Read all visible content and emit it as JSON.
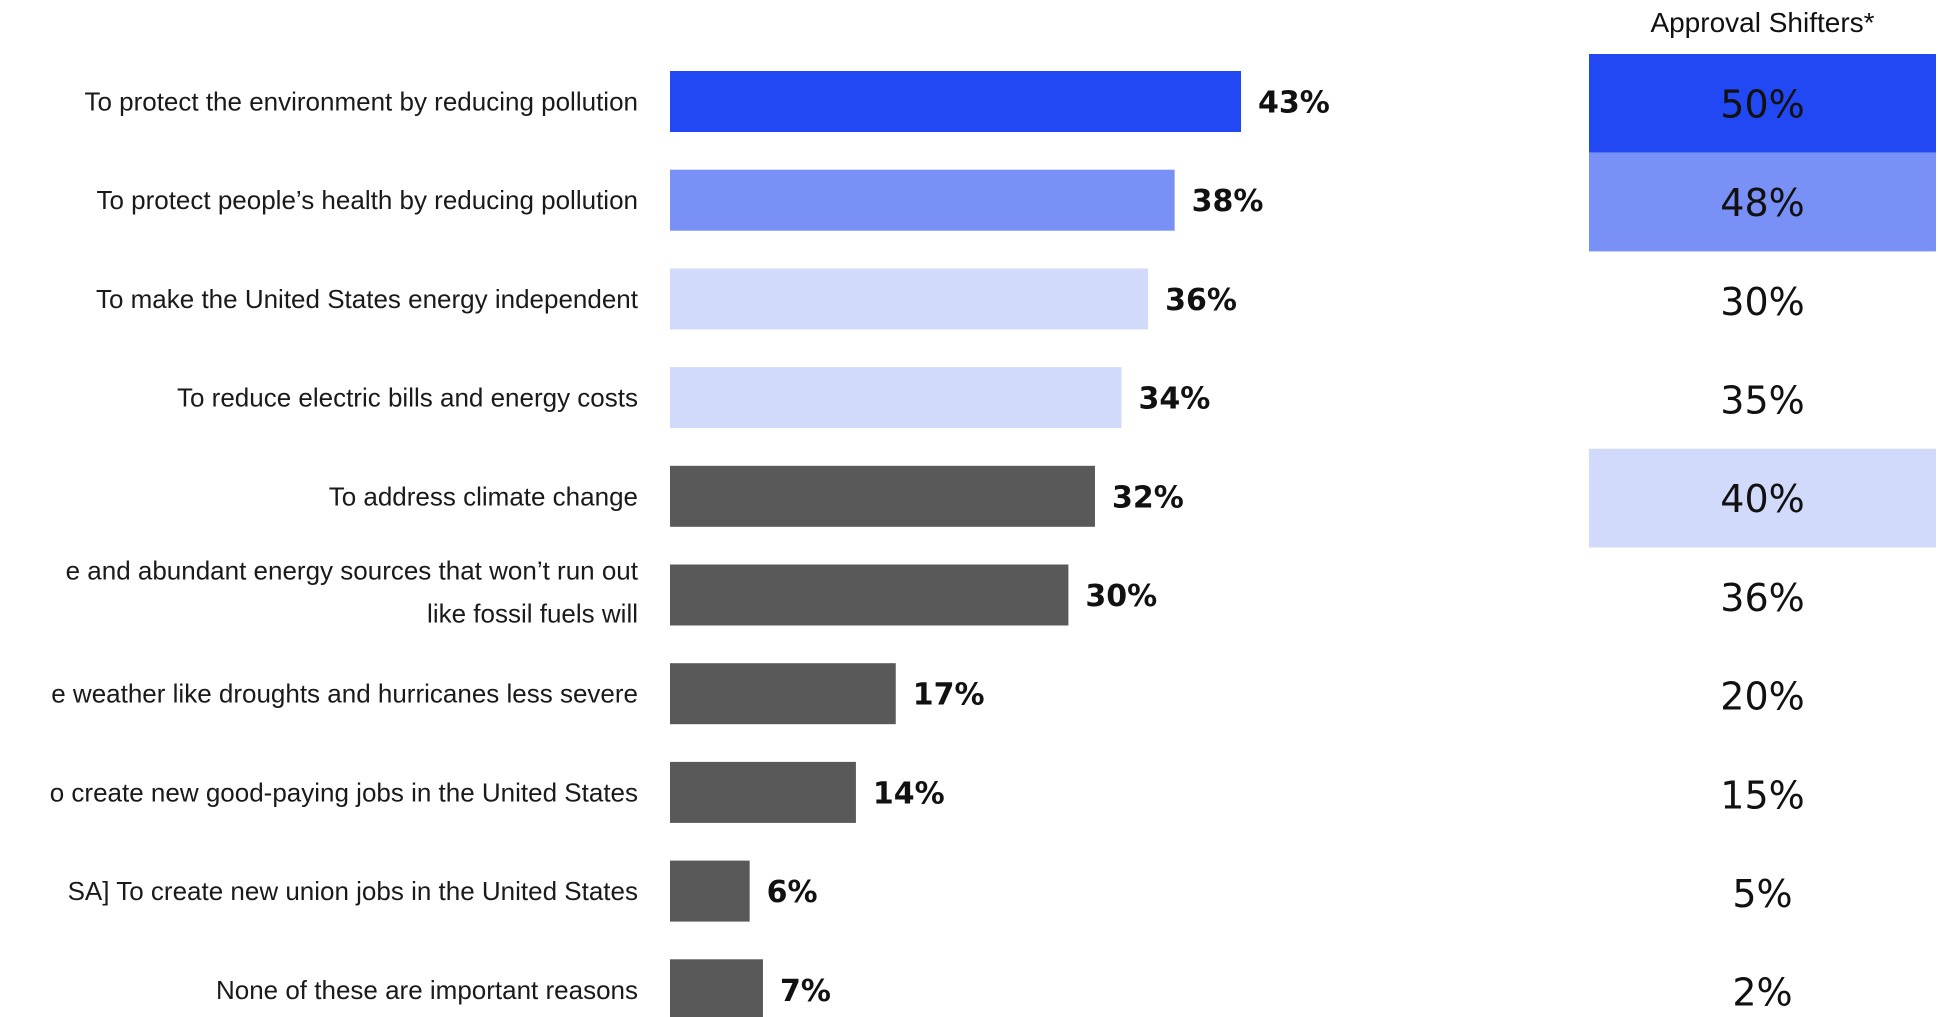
{
  "chart_data": {
    "type": "bar",
    "orientation": "horizontal",
    "categories": [
      "To protect the environment by reducing pollution",
      "To protect people’s health by reducing pollution",
      "To make the United States energy independent",
      "To reduce electric bills and energy costs",
      "To address climate change",
      "e and abundant energy sources that won’t run out\nlike fossil fuels will",
      "e weather like droughts and hurricanes less severe",
      "o create new good-paying jobs in the United States",
      "SA] To create new union jobs in the United States",
      "None of these are important reasons"
    ],
    "values": [
      43,
      38,
      36,
      34,
      32,
      30,
      17,
      14,
      6,
      7
    ],
    "value_labels": [
      "43%",
      "38%",
      "36%",
      "34%",
      "32%",
      "30%",
      "17%",
      "14%",
      "6%",
      "7%"
    ],
    "bar_colors": [
      "#2148f3",
      "#7990f7",
      "#d2dafb",
      "#d2dafb",
      "#595959",
      "#595959",
      "#595959",
      "#595959",
      "#595959",
      "#595959"
    ],
    "side_column": {
      "header": "Approval Shifters*",
      "values": [
        "50%",
        "48%",
        "30%",
        "35%",
        "40%",
        "36%",
        "20%",
        "15%",
        "5%",
        "2%"
      ],
      "highlight_colors": [
        "#2148f3",
        "#7990f7",
        "",
        "",
        "#d2dafb",
        "",
        "",
        "",
        "",
        ""
      ],
      "text_colors": [
        "#ffffff",
        "#111111",
        "#111111",
        "#111111",
        "#111111",
        "#111111",
        "#111111",
        "#111111",
        "#111111",
        "#111111"
      ]
    },
    "xlim": [
      0,
      50
    ]
  }
}
